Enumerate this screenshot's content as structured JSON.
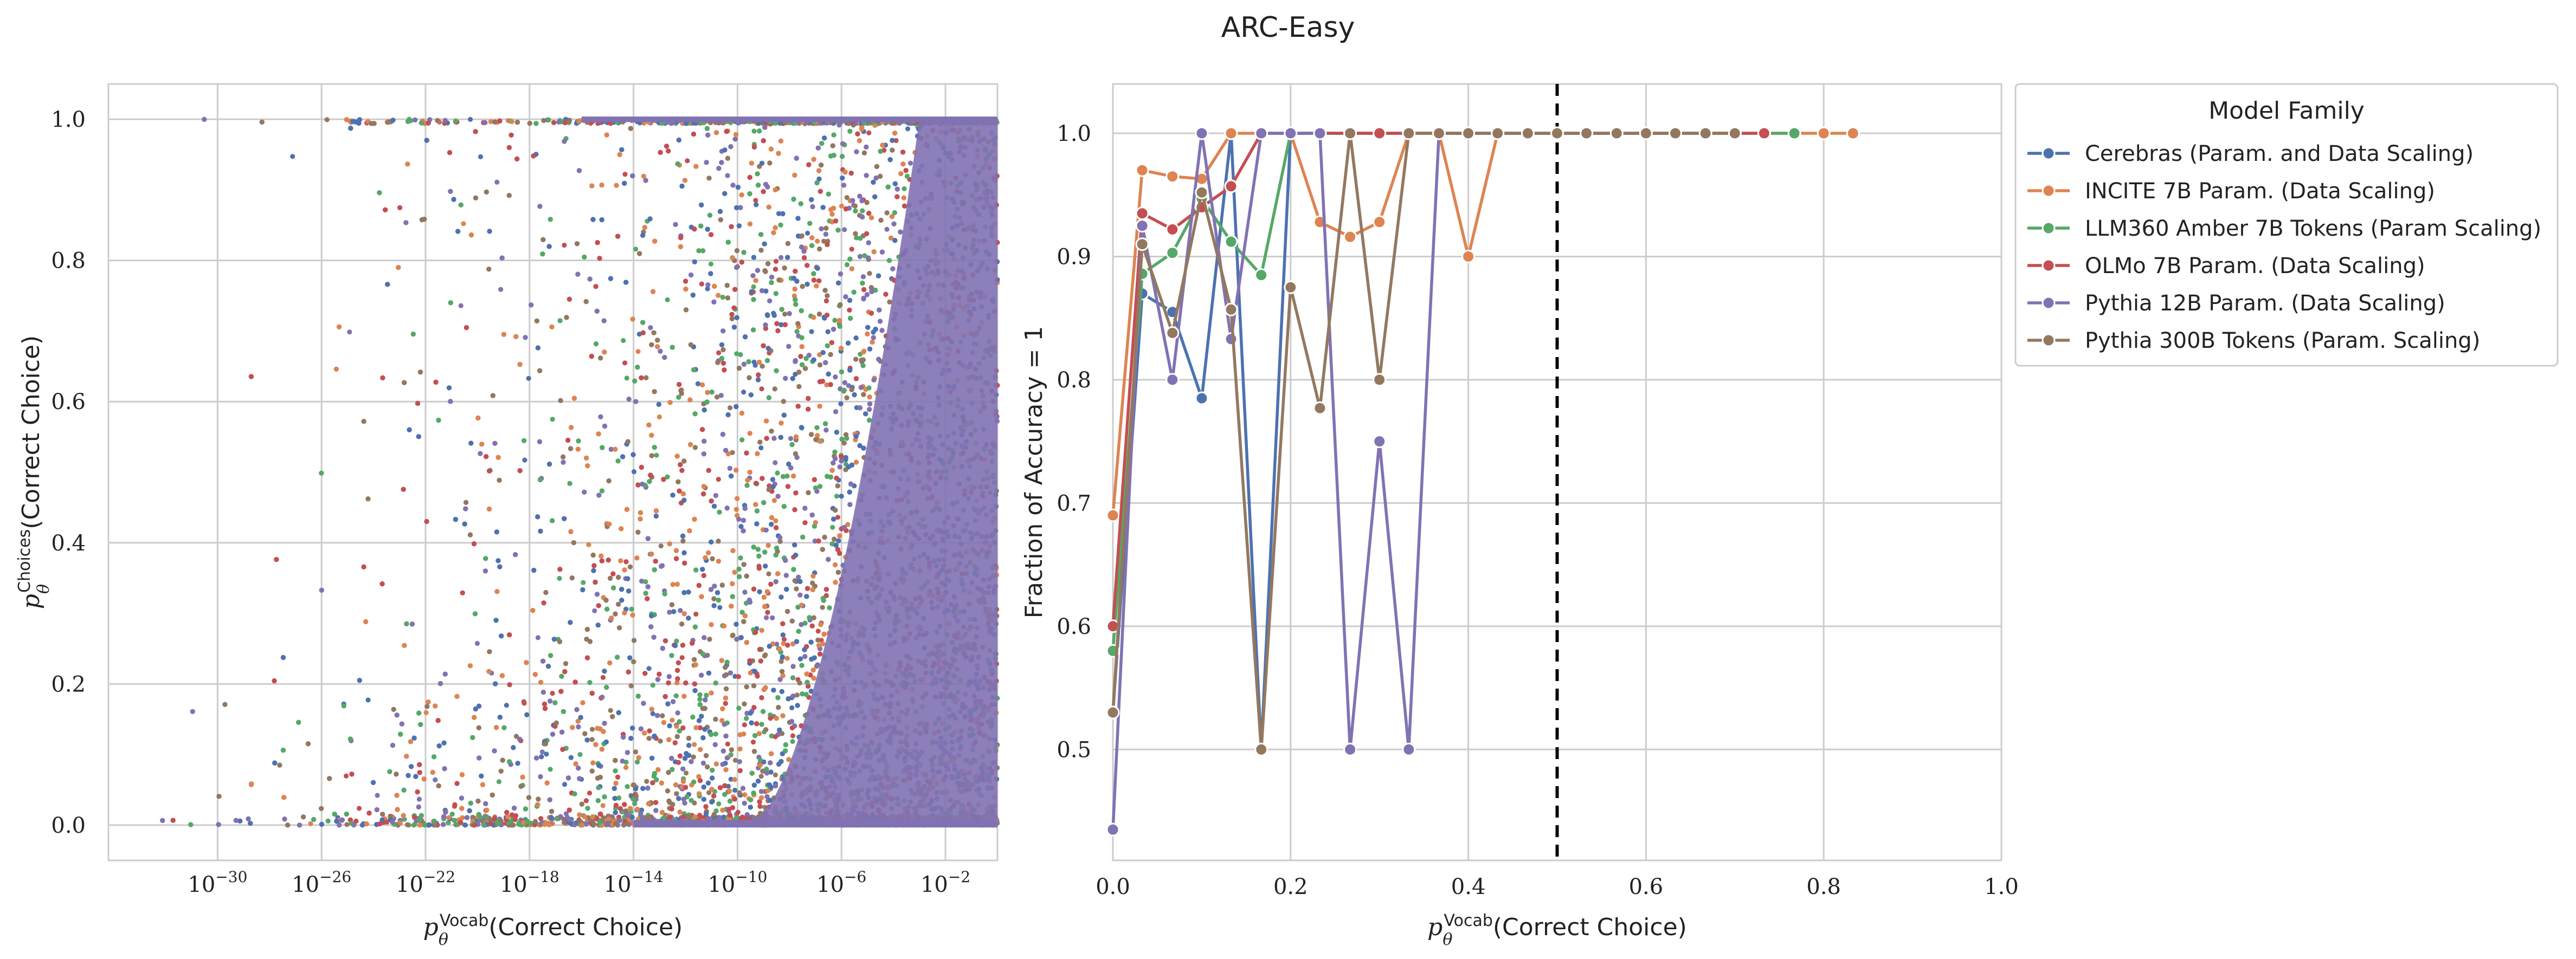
{
  "figure_title": "ARC-Easy",
  "colors": {
    "series": [
      "#4C72B0",
      "#DD8452",
      "#55A868",
      "#C44E52",
      "#8172B3",
      "#937860"
    ],
    "grid": "#cccccc",
    "frame": "#cccccc",
    "threshold": "#000000"
  },
  "chart_data": [
    {
      "type": "scatter",
      "title": "",
      "xlabel": "p_θ^Vocab(Correct Choice)",
      "xlabel_parts": {
        "symbol": "p",
        "sub": "θ",
        "sup": "Vocab",
        "rest": "(Correct Choice)"
      },
      "ylabel": "p_θ^Choices(Correct Choice)",
      "ylabel_parts": {
        "symbol": "p",
        "sub": "θ",
        "sup": "Choices",
        "rest": "(Correct Choice)"
      },
      "xscale": "log",
      "xlim_log10": [
        -34.2,
        0
      ],
      "ylim": [
        -0.05,
        1.05
      ],
      "x_ticks": [
        "10^-30",
        "10^-26",
        "10^-22",
        "10^-18",
        "10^-14",
        "10^-10",
        "10^-6",
        "10^-2"
      ],
      "x_tick_exponents": [
        -30,
        -26,
        -22,
        -18,
        -14,
        -10,
        -6,
        -2
      ],
      "y_ticks": [
        0.0,
        0.2,
        0.4,
        0.6,
        0.8,
        1.0
      ],
      "y_tick_labels": [
        "0.0",
        "0.2",
        "0.4",
        "0.6",
        "0.8",
        "1.0"
      ],
      "grid": true,
      "series_names": [
        "Cerebras (Param. and Data Scaling)",
        "INCITE 7B Param. (Data Scaling)",
        "LLM360 Amber 7B Tokens (Param Scaling)",
        "OLMo 7B Param. (Data Scaling)",
        "Pythia 12B Param. (Data Scaling)",
        "Pythia 300B Tokens (Param. Scaling)"
      ],
      "note": "dense cloud of per-sample points; density increases toward x=1; points cluster near y=0 and y=1 and fill the right region almost entirely"
    },
    {
      "type": "line",
      "title": "",
      "xlabel": "p_θ^Vocab(Correct Choice)",
      "xlabel_parts": {
        "symbol": "p",
        "sub": "θ",
        "sup": "Vocab",
        "rest": "(Correct Choice)"
      },
      "ylabel": "Fraction of Accuracy = 1",
      "xlim": [
        0,
        1.0
      ],
      "ylim": [
        0.41,
        1.04
      ],
      "x_ticks": [
        0.0,
        0.2,
        0.4,
        0.6,
        0.8,
        1.0
      ],
      "x_tick_labels": [
        "0.0",
        "0.2",
        "0.4",
        "0.6",
        "0.8",
        "1.0"
      ],
      "y_ticks": [
        0.5,
        0.6,
        0.7,
        0.8,
        0.9,
        1.0
      ],
      "y_tick_labels": [
        "0.5",
        "0.6",
        "0.7",
        "0.8",
        "0.9",
        "1.0"
      ],
      "grid": true,
      "vline": 0.5,
      "legend": {
        "title": "Model Family",
        "placement": "outside-right"
      },
      "series": [
        {
          "name": "Cerebras (Param. and Data Scaling)",
          "x": [
            0.0,
            0.033,
            0.067,
            0.1,
            0.133,
            0.167,
            0.2,
            0.233,
            0.267,
            0.3,
            0.333,
            0.367,
            0.4,
            0.433,
            0.467,
            0.5,
            0.533
          ],
          "y": [
            0.53,
            0.87,
            0.855,
            0.785,
            1.0,
            0.5,
            1.0,
            1.0,
            1.0,
            1.0,
            1.0,
            1.0,
            1.0,
            1.0,
            1.0,
            1.0,
            1.0
          ]
        },
        {
          "name": "INCITE 7B Param. (Data Scaling)",
          "x": [
            0.0,
            0.033,
            0.067,
            0.1,
            0.133,
            0.167,
            0.2,
            0.233,
            0.267,
            0.3,
            0.333,
            0.367,
            0.4,
            0.433,
            0.467,
            0.5,
            0.533,
            0.567,
            0.6,
            0.633,
            0.667,
            0.7,
            0.733,
            0.767,
            0.8,
            0.833
          ],
          "y": [
            0.69,
            0.97,
            0.965,
            0.963,
            1.0,
            1.0,
            1.0,
            0.928,
            0.916,
            0.928,
            1.0,
            1.0,
            0.9,
            1.0,
            1.0,
            1.0,
            1.0,
            1.0,
            1.0,
            1.0,
            1.0,
            1.0,
            1.0,
            1.0,
            1.0,
            1.0
          ]
        },
        {
          "name": "LLM360 Amber 7B Tokens (Param Scaling)",
          "x": [
            0.0,
            0.033,
            0.067,
            0.1,
            0.133,
            0.167,
            0.2,
            0.233,
            0.267,
            0.3,
            0.333,
            0.367,
            0.4,
            0.433,
            0.467,
            0.5,
            0.533,
            0.567,
            0.6,
            0.633,
            0.667,
            0.7,
            0.733,
            0.767
          ],
          "y": [
            0.58,
            0.886,
            0.903,
            0.947,
            0.912,
            0.885,
            1.0,
            1.0,
            1.0,
            1.0,
            1.0,
            1.0,
            1.0,
            1.0,
            1.0,
            1.0,
            1.0,
            1.0,
            1.0,
            1.0,
            1.0,
            1.0,
            1.0,
            1.0
          ]
        },
        {
          "name": "OLMo 7B Param. (Data Scaling)",
          "x": [
            0.0,
            0.033,
            0.067,
            0.1,
            0.133,
            0.167,
            0.2,
            0.233,
            0.267,
            0.3,
            0.333,
            0.367,
            0.4,
            0.433,
            0.467,
            0.5,
            0.533,
            0.567,
            0.6,
            0.633,
            0.667,
            0.7,
            0.733
          ],
          "y": [
            0.6,
            0.935,
            0.922,
            0.94,
            0.957,
            1.0,
            1.0,
            1.0,
            1.0,
            1.0,
            1.0,
            1.0,
            1.0,
            1.0,
            1.0,
            1.0,
            1.0,
            1.0,
            1.0,
            1.0,
            1.0,
            1.0,
            1.0
          ]
        },
        {
          "name": "Pythia 12B Param. (Data Scaling)",
          "x": [
            0.0,
            0.033,
            0.067,
            0.1,
            0.133,
            0.167,
            0.2,
            0.233,
            0.267,
            0.3,
            0.333,
            0.367,
            0.4,
            0.433,
            0.467,
            0.5,
            0.533,
            0.567,
            0.6,
            0.633
          ],
          "y": [
            0.435,
            0.925,
            0.8,
            1.0,
            0.833,
            1.0,
            1.0,
            1.0,
            0.5,
            0.75,
            0.5,
            1.0,
            1.0,
            1.0,
            1.0,
            1.0,
            1.0,
            1.0,
            1.0,
            1.0
          ]
        },
        {
          "name": "Pythia 300B Tokens (Param. Scaling)",
          "x": [
            0.0,
            0.033,
            0.067,
            0.1,
            0.133,
            0.167,
            0.2,
            0.233,
            0.267,
            0.3,
            0.333,
            0.367,
            0.4,
            0.433,
            0.467,
            0.5,
            0.533,
            0.567,
            0.6,
            0.633,
            0.667,
            0.7
          ],
          "y": [
            0.53,
            0.91,
            0.838,
            0.952,
            0.857,
            0.5,
            0.875,
            0.777,
            1.0,
            0.8,
            1.0,
            1.0,
            1.0,
            1.0,
            1.0,
            1.0,
            1.0,
            1.0,
            1.0,
            1.0,
            1.0,
            1.0
          ]
        }
      ]
    }
  ]
}
